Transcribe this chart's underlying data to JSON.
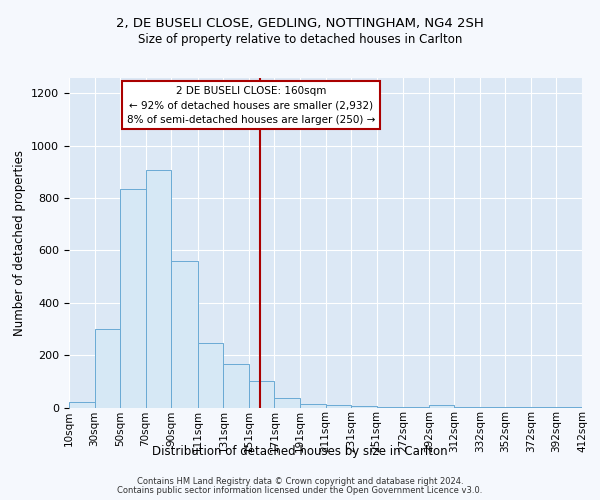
{
  "title1": "2, DE BUSELI CLOSE, GEDLING, NOTTINGHAM, NG4 2SH",
  "title2": "Size of property relative to detached houses in Carlton",
  "xlabel": "Distribution of detached houses by size in Carlton",
  "ylabel": "Number of detached properties",
  "bar_color": "#d6e8f5",
  "bar_edge_color": "#6aaad4",
  "plot_bg_color": "#dce8f5",
  "fig_bg_color": "#f5f8fd",
  "vline_color": "#aa0000",
  "vline_x": 160,
  "annotation_box_color": "#ffffff",
  "annotation_box_edge": "#aa0000",
  "bins": [
    10,
    30,
    50,
    70,
    90,
    111,
    131,
    151,
    171,
    191,
    211,
    231,
    251,
    272,
    292,
    312,
    332,
    352,
    372,
    392,
    412
  ],
  "bin_labels": [
    "10sqm",
    "30sqm",
    "50sqm",
    "70sqm",
    "90sqm",
    "111sqm",
    "131sqm",
    "151sqm",
    "171sqm",
    "191sqm",
    "211sqm",
    "231sqm",
    "251sqm",
    "272sqm",
    "292sqm",
    "312sqm",
    "332sqm",
    "352sqm",
    "372sqm",
    "392sqm",
    "412sqm"
  ],
  "heights": [
    20,
    300,
    835,
    905,
    560,
    245,
    165,
    100,
    35,
    15,
    10,
    5,
    2,
    1,
    10,
    1,
    1,
    1,
    1,
    1
  ],
  "ylim": [
    0,
    1260
  ],
  "yticks": [
    0,
    200,
    400,
    600,
    800,
    1000,
    1200
  ],
  "footer1": "Contains HM Land Registry data © Crown copyright and database right 2024.",
  "footer2": "Contains public sector information licensed under the Open Government Licence v3.0."
}
